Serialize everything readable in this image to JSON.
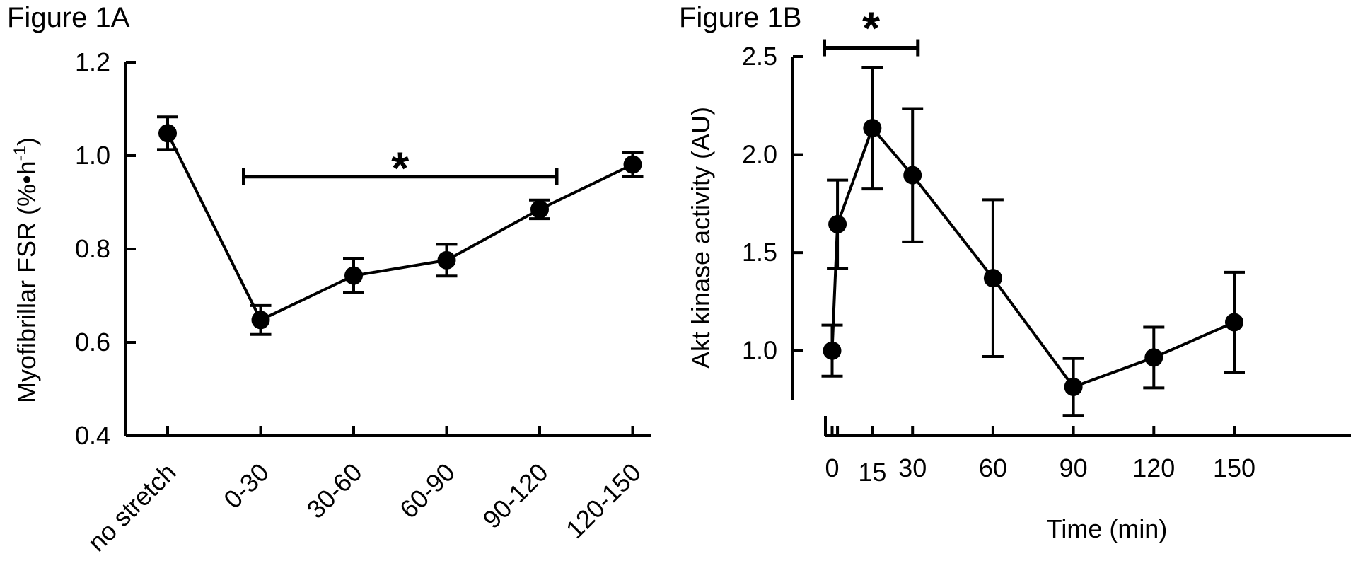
{
  "chart_data": [
    {
      "panel_label": "Figure 1A",
      "type": "line",
      "ylabel": "Myofibrillar FSR (%•h",
      "ylabel_sup": "-1",
      "ylabel_close": ")",
      "ylim": [
        0.4,
        1.2
      ],
      "yticks": [
        0.4,
        0.6,
        0.8,
        1.0,
        1.2
      ],
      "ytick_labels": [
        "0.4",
        "0.6",
        "0.8",
        "1.0",
        "1.2"
      ],
      "categories": [
        "no stretch",
        "0-30",
        "30-60",
        "60-90",
        "90-120",
        "120-150"
      ],
      "values": [
        1.048,
        0.648,
        0.743,
        0.776,
        0.885,
        0.981
      ],
      "errors": [
        0.035,
        0.031,
        0.037,
        0.034,
        0.02,
        0.026
      ],
      "significance": {
        "label": "*",
        "from": "0-30",
        "to": "90-120",
        "y": 0.955
      },
      "grid": false
    },
    {
      "panel_label": "Figure 1B",
      "type": "line",
      "xlabel": "Time (min)",
      "ylabel": "Akt kinase activity (AU)",
      "ylim": [
        0.75,
        2.5
      ],
      "yticks": [
        1.0,
        1.5,
        2.0,
        2.5
      ],
      "ytick_labels": [
        "1.0",
        "1.5",
        "2.0",
        "2.5"
      ],
      "xticks": [
        0,
        2,
        15,
        30,
        60,
        90,
        120,
        150
      ],
      "xtick_labels": [
        "0",
        "",
        "15",
        "30",
        "60",
        "90",
        "120",
        "150"
      ],
      "x": [
        0,
        2,
        15,
        30,
        60,
        90,
        120,
        150
      ],
      "values": [
        1.0,
        1.645,
        2.135,
        1.895,
        1.37,
        0.815,
        0.965,
        1.145
      ],
      "errors": [
        0.13,
        0.225,
        0.31,
        0.34,
        0.4,
        0.145,
        0.155,
        0.255
      ],
      "significance": {
        "label": "*",
        "from": 0,
        "to": 32,
        "y": 2.545
      },
      "grid": false
    }
  ]
}
